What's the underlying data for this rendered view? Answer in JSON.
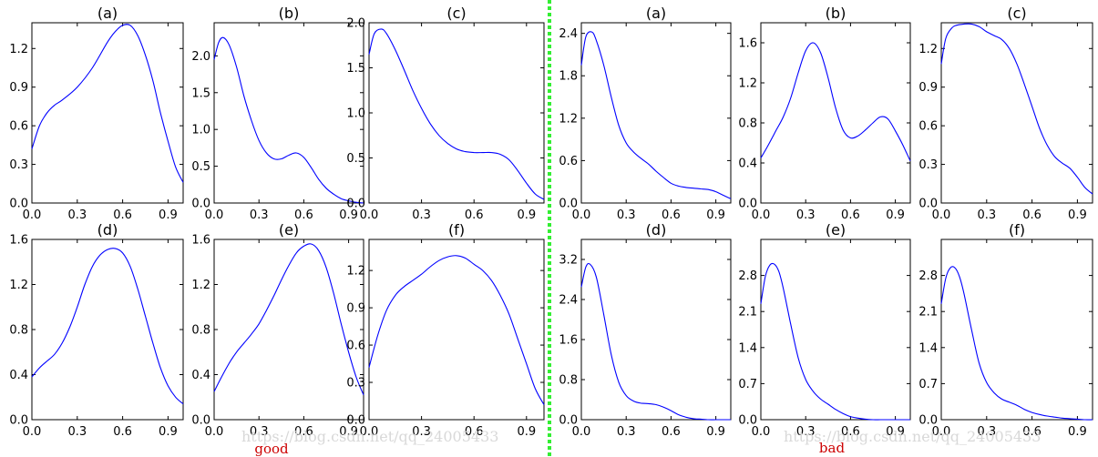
{
  "divider_color": "#33ee33",
  "line_color": "#0000ff",
  "group_labels": {
    "good": "good",
    "bad": "bad"
  },
  "watermark": "https://blog.csdn.net/qq_24005433",
  "chart_data": [
    {
      "group": "good",
      "title": "(a)",
      "type": "line",
      "xlim": [
        0,
        1
      ],
      "ylim": [
        0,
        1.4
      ],
      "yticks": [
        "0.0",
        "0.3",
        "0.6",
        "0.9",
        "1.2"
      ],
      "ytick_values": [
        0,
        0.3,
        0.6,
        0.9,
        1.2
      ],
      "xticks": [
        "0.0",
        "0.3",
        "0.6",
        "0.9"
      ],
      "x": [
        0,
        0.05,
        0.1,
        0.15,
        0.2,
        0.3,
        0.4,
        0.5,
        0.55,
        0.6,
        0.65,
        0.7,
        0.75,
        0.8,
        0.85,
        0.9,
        0.95,
        1.0
      ],
      "y": [
        0.42,
        0.6,
        0.7,
        0.76,
        0.8,
        0.9,
        1.05,
        1.25,
        1.33,
        1.38,
        1.38,
        1.3,
        1.15,
        0.95,
        0.7,
        0.48,
        0.28,
        0.16
      ]
    },
    {
      "group": "good",
      "title": "(b)",
      "type": "line",
      "xlim": [
        0,
        1
      ],
      "ylim": [
        0,
        2.45
      ],
      "yticks": [
        "0.0",
        "0.5",
        "1.0",
        "1.5",
        "2.0"
      ],
      "ytick_values": [
        0,
        0.5,
        1.0,
        1.5,
        2.0
      ],
      "xticks": [
        "0.0",
        "0.3",
        "0.6",
        "0.9"
      ],
      "x": [
        0,
        0.03,
        0.06,
        0.1,
        0.15,
        0.2,
        0.25,
        0.3,
        0.35,
        0.4,
        0.45,
        0.5,
        0.55,
        0.6,
        0.65,
        0.7,
        0.75,
        0.8,
        0.85,
        0.9,
        0.95,
        1.0
      ],
      "y": [
        1.95,
        2.18,
        2.25,
        2.15,
        1.85,
        1.45,
        1.12,
        0.85,
        0.68,
        0.6,
        0.6,
        0.65,
        0.68,
        0.62,
        0.48,
        0.32,
        0.2,
        0.12,
        0.06,
        0.03,
        0.01,
        0.0
      ]
    },
    {
      "group": "good",
      "title": "(c)",
      "type": "line",
      "xlim": [
        0,
        1
      ],
      "ylim": [
        0,
        2.0
      ],
      "yticks": [
        "0.0",
        "0.5",
        "1.0",
        "1.5",
        "2.0"
      ],
      "ytick_values": [
        0,
        0.5,
        1.0,
        1.5,
        2.0
      ],
      "xticks": [
        "0.0",
        "0.3",
        "0.6",
        "0.9"
      ],
      "x": [
        0,
        0.03,
        0.07,
        0.1,
        0.15,
        0.2,
        0.25,
        0.3,
        0.35,
        0.4,
        0.45,
        0.5,
        0.55,
        0.6,
        0.65,
        0.7,
        0.75,
        0.8,
        0.85,
        0.9,
        0.95,
        1.0
      ],
      "y": [
        1.65,
        1.88,
        1.93,
        1.88,
        1.7,
        1.48,
        1.25,
        1.05,
        0.88,
        0.75,
        0.66,
        0.6,
        0.57,
        0.56,
        0.56,
        0.56,
        0.54,
        0.48,
        0.36,
        0.22,
        0.1,
        0.04
      ]
    },
    {
      "group": "bad",
      "title": "(a)",
      "type": "line",
      "xlim": [
        0,
        1
      ],
      "ylim": [
        0,
        2.55
      ],
      "yticks": [
        "0.0",
        "0.6",
        "1.2",
        "1.8",
        "2.4"
      ],
      "ytick_values": [
        0,
        0.6,
        1.2,
        1.8,
        2.4
      ],
      "xticks": [
        "0.0",
        "0.3",
        "0.6",
        "0.9"
      ],
      "x": [
        0,
        0.03,
        0.07,
        0.1,
        0.15,
        0.2,
        0.25,
        0.3,
        0.35,
        0.4,
        0.45,
        0.5,
        0.55,
        0.6,
        0.65,
        0.7,
        0.75,
        0.8,
        0.85,
        0.9,
        0.95,
        1.0
      ],
      "y": [
        1.95,
        2.35,
        2.42,
        2.3,
        1.95,
        1.5,
        1.1,
        0.85,
        0.72,
        0.63,
        0.55,
        0.45,
        0.36,
        0.28,
        0.24,
        0.22,
        0.21,
        0.2,
        0.19,
        0.16,
        0.11,
        0.06
      ]
    },
    {
      "group": "bad",
      "title": "(b)",
      "type": "line",
      "xlim": [
        0,
        1
      ],
      "ylim": [
        0,
        1.8
      ],
      "yticks": [
        "0.0",
        "0.4",
        "0.8",
        "1.2",
        "1.6"
      ],
      "ytick_values": [
        0,
        0.4,
        0.8,
        1.2,
        1.6
      ],
      "xticks": [
        "0.0",
        "0.3",
        "0.6",
        "0.9"
      ],
      "x": [
        0,
        0.05,
        0.1,
        0.15,
        0.2,
        0.25,
        0.3,
        0.35,
        0.4,
        0.45,
        0.5,
        0.55,
        0.6,
        0.65,
        0.7,
        0.75,
        0.8,
        0.85,
        0.9,
        0.95,
        1.0
      ],
      "y": [
        0.45,
        0.58,
        0.72,
        0.86,
        1.05,
        1.3,
        1.52,
        1.6,
        1.5,
        1.25,
        0.95,
        0.73,
        0.65,
        0.67,
        0.73,
        0.8,
        0.86,
        0.84,
        0.72,
        0.58,
        0.42
      ]
    },
    {
      "group": "bad",
      "title": "(c)",
      "type": "line",
      "xlim": [
        0,
        1
      ],
      "ylim": [
        0,
        1.4
      ],
      "yticks": [
        "0.0",
        "0.3",
        "0.6",
        "0.9",
        "1.2"
      ],
      "ytick_values": [
        0,
        0.3,
        0.6,
        0.9,
        1.2
      ],
      "xticks": [
        "0.0",
        "0.3",
        "0.6",
        "0.9"
      ],
      "x": [
        0,
        0.03,
        0.07,
        0.1,
        0.15,
        0.2,
        0.25,
        0.3,
        0.35,
        0.4,
        0.45,
        0.5,
        0.55,
        0.6,
        0.65,
        0.7,
        0.75,
        0.8,
        0.85,
        0.9,
        0.95,
        1.0
      ],
      "y": [
        1.08,
        1.28,
        1.36,
        1.38,
        1.39,
        1.39,
        1.37,
        1.33,
        1.3,
        1.27,
        1.2,
        1.08,
        0.92,
        0.75,
        0.58,
        0.45,
        0.36,
        0.31,
        0.27,
        0.2,
        0.12,
        0.07
      ]
    },
    {
      "group": "good",
      "title": "(d)",
      "type": "line",
      "xlim": [
        0,
        1
      ],
      "ylim": [
        0,
        1.6
      ],
      "yticks": [
        "0.0",
        "0.4",
        "0.8",
        "1.2",
        "1.6"
      ],
      "ytick_values": [
        0,
        0.4,
        0.8,
        1.2,
        1.6
      ],
      "xticks": [
        "0.0",
        "0.3",
        "0.6",
        "0.9"
      ],
      "x": [
        0,
        0.05,
        0.1,
        0.15,
        0.2,
        0.25,
        0.3,
        0.35,
        0.4,
        0.45,
        0.5,
        0.55,
        0.6,
        0.65,
        0.7,
        0.75,
        0.8,
        0.85,
        0.9,
        0.95,
        1.0
      ],
      "y": [
        0.38,
        0.46,
        0.52,
        0.58,
        0.68,
        0.82,
        1.0,
        1.2,
        1.36,
        1.46,
        1.51,
        1.52,
        1.48,
        1.36,
        1.16,
        0.92,
        0.68,
        0.46,
        0.3,
        0.2,
        0.14
      ]
    },
    {
      "group": "good",
      "title": "(e)",
      "type": "line",
      "xlim": [
        0,
        1
      ],
      "ylim": [
        0,
        1.6
      ],
      "yticks": [
        "0.0",
        "0.4",
        "0.8",
        "1.2",
        "1.6"
      ],
      "ytick_values": [
        0,
        0.4,
        0.8,
        1.2,
        1.6
      ],
      "xticks": [
        "0.0",
        "0.3",
        "0.6",
        "0.9"
      ],
      "x": [
        0,
        0.05,
        0.1,
        0.15,
        0.2,
        0.25,
        0.3,
        0.35,
        0.4,
        0.45,
        0.5,
        0.55,
        0.6,
        0.65,
        0.7,
        0.75,
        0.8,
        0.85,
        0.9,
        0.95,
        1.0
      ],
      "y": [
        0.25,
        0.38,
        0.5,
        0.6,
        0.68,
        0.76,
        0.85,
        0.97,
        1.1,
        1.24,
        1.37,
        1.48,
        1.54,
        1.56,
        1.5,
        1.35,
        1.12,
        0.85,
        0.6,
        0.38,
        0.22
      ]
    },
    {
      "group": "good",
      "title": "(f)",
      "type": "line",
      "xlim": [
        0,
        1
      ],
      "ylim": [
        0,
        1.45
      ],
      "yticks": [
        "0.0",
        "0.3",
        "0.6",
        "0.9",
        "1.2"
      ],
      "ytick_values": [
        0,
        0.3,
        0.6,
        0.9,
        1.2
      ],
      "xticks": [
        "0.0",
        "0.3",
        "0.6",
        "0.9"
      ],
      "x": [
        0,
        0.05,
        0.1,
        0.15,
        0.2,
        0.25,
        0.3,
        0.35,
        0.4,
        0.45,
        0.5,
        0.55,
        0.6,
        0.65,
        0.7,
        0.75,
        0.8,
        0.85,
        0.9,
        0.95,
        1.0
      ],
      "y": [
        0.42,
        0.68,
        0.88,
        1.0,
        1.07,
        1.12,
        1.17,
        1.23,
        1.28,
        1.31,
        1.32,
        1.3,
        1.25,
        1.2,
        1.12,
        1.0,
        0.85,
        0.65,
        0.45,
        0.25,
        0.12
      ]
    },
    {
      "group": "bad",
      "title": "(d)",
      "type": "line",
      "xlim": [
        0,
        1
      ],
      "ylim": [
        0,
        3.6
      ],
      "yticks": [
        "0.0",
        "0.8",
        "1.6",
        "2.4",
        "3.2"
      ],
      "ytick_values": [
        0,
        0.8,
        1.6,
        2.4,
        3.2
      ],
      "xticks": [
        "0.0",
        "0.3",
        "0.6",
        "0.9"
      ],
      "x": [
        0,
        0.03,
        0.06,
        0.1,
        0.15,
        0.2,
        0.25,
        0.3,
        0.35,
        0.4,
        0.45,
        0.5,
        0.55,
        0.6,
        0.65,
        0.7,
        0.75,
        0.8,
        0.85,
        0.9,
        0.95,
        1.0
      ],
      "y": [
        2.65,
        3.05,
        3.1,
        2.85,
        2.1,
        1.3,
        0.75,
        0.48,
        0.37,
        0.33,
        0.32,
        0.3,
        0.25,
        0.18,
        0.1,
        0.05,
        0.02,
        0.01,
        0,
        0,
        0,
        0
      ]
    },
    {
      "group": "bad",
      "title": "(e)",
      "type": "line",
      "xlim": [
        0,
        1
      ],
      "ylim": [
        0,
        3.5
      ],
      "yticks": [
        "0.0",
        "0.7",
        "1.4",
        "2.1",
        "2.8"
      ],
      "ytick_values": [
        0,
        0.7,
        1.4,
        2.1,
        2.8
      ],
      "xticks": [
        "0.0",
        "0.3",
        "0.6",
        "0.9"
      ],
      "x": [
        0,
        0.03,
        0.06,
        0.09,
        0.12,
        0.15,
        0.2,
        0.25,
        0.3,
        0.35,
        0.4,
        0.45,
        0.5,
        0.55,
        0.6,
        0.65,
        0.7,
        0.75,
        0.8,
        0.85,
        0.9,
        0.95,
        1.0
      ],
      "y": [
        2.25,
        2.78,
        3.0,
        3.02,
        2.88,
        2.55,
        1.85,
        1.2,
        0.78,
        0.55,
        0.4,
        0.3,
        0.2,
        0.12,
        0.06,
        0.03,
        0.01,
        0,
        0,
        0,
        0,
        0,
        0
      ]
    },
    {
      "group": "bad",
      "title": "(f)",
      "type": "line",
      "xlim": [
        0,
        1
      ],
      "ylim": [
        0,
        3.5
      ],
      "yticks": [
        "0.0",
        "0.7",
        "1.4",
        "2.1",
        "2.8"
      ],
      "ytick_values": [
        0,
        0.7,
        1.4,
        2.1,
        2.8
      ],
      "xticks": [
        "0.0",
        "0.3",
        "0.6",
        "0.9"
      ],
      "x": [
        0,
        0.03,
        0.06,
        0.09,
        0.12,
        0.15,
        0.2,
        0.25,
        0.3,
        0.35,
        0.4,
        0.45,
        0.5,
        0.55,
        0.6,
        0.65,
        0.7,
        0.75,
        0.8,
        0.85,
        0.9,
        0.95,
        1.0
      ],
      "y": [
        2.25,
        2.75,
        2.95,
        2.95,
        2.78,
        2.45,
        1.75,
        1.1,
        0.72,
        0.52,
        0.4,
        0.34,
        0.28,
        0.2,
        0.14,
        0.1,
        0.07,
        0.05,
        0.03,
        0.02,
        0.01,
        0,
        0
      ]
    }
  ]
}
